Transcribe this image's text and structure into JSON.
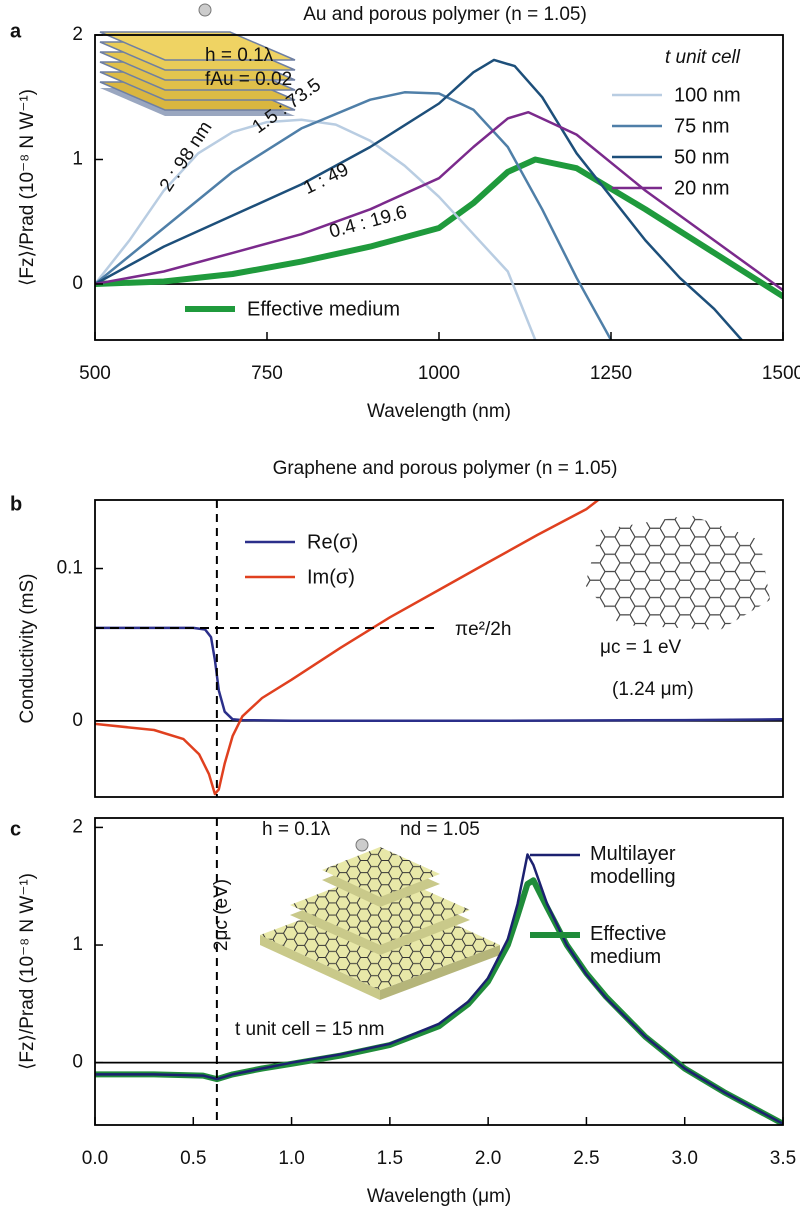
{
  "chart_data": [
    {
      "type": "line",
      "label": "a",
      "title": "Au and porous polymer (n = 1.05)",
      "xlabel": "Wavelength (nm)",
      "ylabel": "⟨Fz⟩/Prad (10⁻⁸ N W⁻¹)",
      "xlim": [
        500,
        1500
      ],
      "ylim": [
        -0.45,
        2
      ],
      "xticks": [
        500,
        750,
        1000,
        1250,
        1500
      ],
      "yticks": [
        0,
        1,
        2
      ],
      "zero_line": true,
      "legend_title": "t unit cell",
      "annotations": [
        "2 : 98 nm",
        "1.5 : 73.5",
        "1 : 49",
        "0.4 : 19.6",
        "h = 0.1λ",
        "fAu = 0.02"
      ],
      "series": [
        {
          "name": "100 nm",
          "color": "#b9cde2",
          "width": 2.5,
          "x": [
            500,
            550,
            600,
            650,
            700,
            750,
            800,
            850,
            900,
            950,
            1000,
            1050,
            1100,
            1140
          ],
          "values": [
            0,
            0.35,
            0.75,
            1.05,
            1.22,
            1.3,
            1.32,
            1.28,
            1.15,
            0.95,
            0.7,
            0.4,
            0.1,
            -0.45
          ]
        },
        {
          "name": "75 nm",
          "color": "#4f7fa8",
          "width": 2.5,
          "x": [
            500,
            600,
            700,
            800,
            900,
            950,
            1000,
            1050,
            1100,
            1150,
            1200,
            1250
          ],
          "values": [
            0,
            0.45,
            0.9,
            1.25,
            1.48,
            1.54,
            1.53,
            1.4,
            1.1,
            0.6,
            0.05,
            -0.45
          ]
        },
        {
          "name": "50 nm",
          "color": "#1d4f7a",
          "width": 2.5,
          "x": [
            500,
            600,
            700,
            800,
            900,
            1000,
            1050,
            1080,
            1110,
            1150,
            1200,
            1250,
            1300,
            1350,
            1400,
            1440
          ],
          "values": [
            0,
            0.3,
            0.55,
            0.8,
            1.1,
            1.45,
            1.7,
            1.8,
            1.75,
            1.5,
            1.05,
            0.7,
            0.35,
            0.05,
            -0.2,
            -0.45
          ]
        },
        {
          "name": "20 nm",
          "color": "#7b2a8c",
          "width": 2.5,
          "x": [
            500,
            600,
            700,
            800,
            900,
            1000,
            1050,
            1100,
            1130,
            1200,
            1300,
            1400,
            1500
          ],
          "values": [
            0,
            0.1,
            0.25,
            0.4,
            0.6,
            0.85,
            1.1,
            1.33,
            1.38,
            1.2,
            0.75,
            0.35,
            -0.05
          ]
        },
        {
          "name": "Effective medium",
          "color": "#1f9a3c",
          "width": 6,
          "x": [
            500,
            600,
            700,
            800,
            900,
            1000,
            1050,
            1100,
            1140,
            1200,
            1300,
            1400,
            1500
          ],
          "values": [
            0,
            0.02,
            0.08,
            0.18,
            0.3,
            0.45,
            0.65,
            0.9,
            1.0,
            0.93,
            0.6,
            0.25,
            -0.1
          ]
        }
      ]
    },
    {
      "type": "line",
      "label": "b",
      "title": "Graphene and porous polymer (n = 1.05)",
      "ylabel": "Conductivity (mS)",
      "xlim": [
        0,
        3.5
      ],
      "ylim": [
        -0.05,
        0.145
      ],
      "yticks": [
        0,
        0.1
      ],
      "zero_line": true,
      "hlines": [
        {
          "value": 0.061,
          "label": "πe²/2h"
        }
      ],
      "vlines": [
        0.62
      ],
      "annotations": [
        "μc = 1 eV",
        "(1.24 μm)"
      ],
      "series": [
        {
          "name": "Re(σ)",
          "color": "#2b2f8a",
          "width": 2.5,
          "x": [
            0,
            0.3,
            0.5,
            0.56,
            0.59,
            0.61,
            0.63,
            0.66,
            0.7,
            0.75,
            1.0,
            2.0,
            3.0,
            3.5
          ],
          "values": [
            0.061,
            0.061,
            0.061,
            0.06,
            0.055,
            0.04,
            0.02,
            0.006,
            0.001,
            0.0005,
            0,
            0,
            0.0005,
            0.001
          ]
        },
        {
          "name": "Im(σ)",
          "color": "#e0401f",
          "width": 2.5,
          "x": [
            0,
            0.3,
            0.45,
            0.53,
            0.58,
            0.61,
            0.63,
            0.66,
            0.7,
            0.75,
            0.85,
            1.0,
            1.25,
            1.5,
            1.75,
            2.0,
            2.25,
            2.5,
            2.56
          ],
          "values": [
            -0.002,
            -0.006,
            -0.012,
            -0.022,
            -0.035,
            -0.048,
            -0.045,
            -0.028,
            -0.01,
            0.003,
            0.015,
            0.027,
            0.048,
            0.068,
            0.086,
            0.104,
            0.122,
            0.139,
            0.145
          ]
        }
      ]
    },
    {
      "type": "line",
      "label": "c",
      "xlabel": "Wavelength (μm)",
      "ylabel": "⟨Fz⟩/Prad (10⁻⁸ N W⁻¹)",
      "xlim": [
        0,
        3.5
      ],
      "ylim": [
        -0.53,
        2.08
      ],
      "xticks": [
        {
          "value": 0,
          "label": "0.0"
        },
        0.5,
        {
          "value": 1,
          "label": "1.0"
        },
        1.5,
        {
          "value": 2,
          "label": "2.0"
        },
        2.5,
        {
          "value": 3,
          "label": "3.0"
        },
        3.5
      ],
      "yticks": [
        0,
        1,
        2
      ],
      "zero_line": true,
      "vlines": [
        0.62
      ],
      "annotations": [
        "h = 0.1λ",
        "nd = 1.05",
        "2μc (eV)",
        "t unit cell = 15 nm"
      ],
      "series": [
        {
          "name": "Multilayer modelling",
          "color": "#1c2170",
          "width": 2.5,
          "x": [
            0,
            0.3,
            0.55,
            0.62,
            0.7,
            0.85,
            1.0,
            1.25,
            1.5,
            1.75,
            1.9,
            2.0,
            2.1,
            2.15,
            2.2,
            2.23,
            2.3,
            2.4,
            2.5,
            2.6,
            2.8,
            3.0,
            3.2,
            3.5
          ],
          "values": [
            -0.1,
            -0.1,
            -0.11,
            -0.14,
            -0.1,
            -0.05,
            0.0,
            0.07,
            0.16,
            0.33,
            0.52,
            0.72,
            1.05,
            1.35,
            1.77,
            1.68,
            1.35,
            1.0,
            0.75,
            0.55,
            0.22,
            -0.05,
            -0.25,
            -0.52
          ]
        },
        {
          "name": "Effective medium",
          "color": "#1f8c3a",
          "width": 6,
          "x": [
            0,
            0.3,
            0.55,
            0.62,
            0.7,
            0.85,
            1.0,
            1.25,
            1.5,
            1.75,
            1.9,
            2.0,
            2.1,
            2.15,
            2.2,
            2.23,
            2.3,
            2.4,
            2.5,
            2.6,
            2.8,
            3.0,
            3.2,
            3.5
          ],
          "values": [
            -0.1,
            -0.1,
            -0.11,
            -0.14,
            -0.1,
            -0.05,
            -0.01,
            0.06,
            0.15,
            0.31,
            0.5,
            0.69,
            1.0,
            1.25,
            1.52,
            1.55,
            1.32,
            1.0,
            0.76,
            0.56,
            0.22,
            -0.05,
            -0.25,
            -0.52
          ]
        }
      ]
    }
  ]
}
